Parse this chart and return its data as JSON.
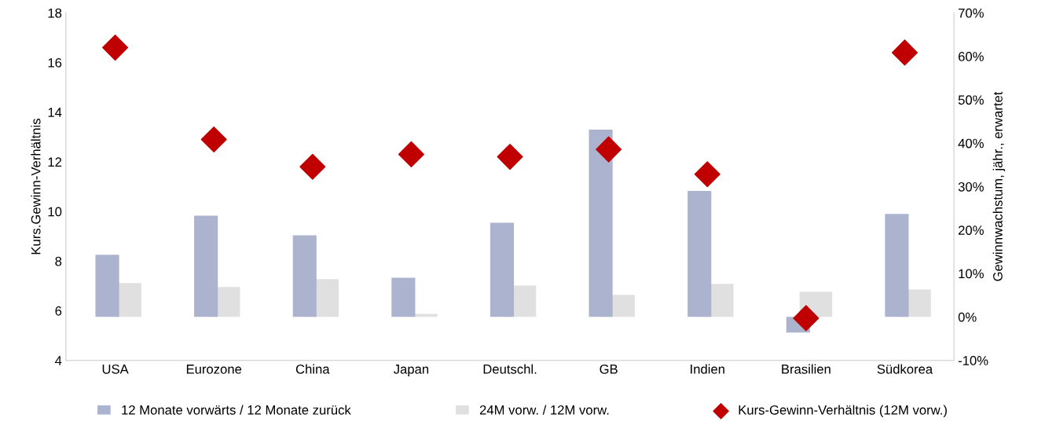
{
  "chart_data": {
    "type": "bar",
    "categories": [
      "USA",
      "Eurozone",
      "China",
      "Japan",
      "Deutschl.",
      "GB",
      "Indien",
      "Brasilien",
      "Südkorea"
    ],
    "ylabel": "Kurs.Gewinn-Verhältnis",
    "y2label": "Gewinnwachstum, jähr., erwartet",
    "ylim": [
      4,
      18
    ],
    "yticks": [
      4,
      6,
      8,
      10,
      12,
      14,
      16,
      18
    ],
    "y2lim": [
      -10,
      70
    ],
    "y2ticks": [
      {
        "value": -10,
        "label": "-10%"
      },
      {
        "value": 0,
        "label": "0%"
      },
      {
        "value": 10,
        "label": "10%"
      },
      {
        "value": 20,
        "label": "20%"
      },
      {
        "value": 30,
        "label": "30%"
      },
      {
        "value": 40,
        "label": "40%"
      },
      {
        "value": 50,
        "label": "50%"
      },
      {
        "value": 60,
        "label": "60%"
      },
      {
        "value": 70,
        "label": "70%"
      }
    ],
    "grid": false,
    "legend": "bottom",
    "series": [
      {
        "name": "12 Monate vorwärts / 12 Monate zurück",
        "axis": "y2",
        "color": "#abb3cf",
        "values": [
          14.3,
          23.3,
          18.8,
          9.0,
          21.7,
          43.1,
          29.0,
          -3.6,
          23.7
        ]
      },
      {
        "name": "24M vorw. / 12M vorw.",
        "axis": "y2",
        "color": "#e0e0e0",
        "values": [
          7.8,
          6.9,
          8.7,
          0.7,
          7.2,
          5.1,
          7.6,
          5.8,
          6.3
        ]
      },
      {
        "name": "Kurs-Gewinn-Verhältnis (12M vorw.)",
        "type": "scatter",
        "axis": "y",
        "marker": "diamond",
        "color": "#c00000",
        "values": [
          16.6,
          12.9,
          11.8,
          12.3,
          12.2,
          12.5,
          11.5,
          5.7,
          16.4
        ]
      }
    ]
  }
}
